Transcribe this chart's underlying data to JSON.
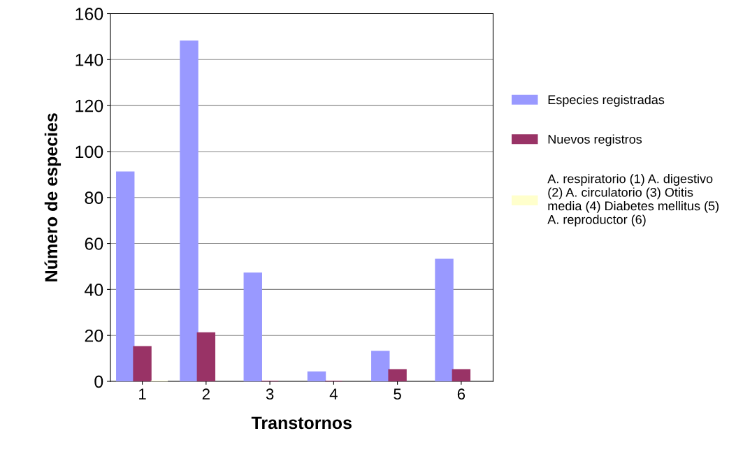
{
  "chart_data": {
    "type": "bar",
    "xlabel": "Transtornos",
    "ylabel": "Número de especies",
    "categories": [
      "1",
      "2",
      "3",
      "4",
      "5",
      "6"
    ],
    "series": [
      {
        "name": "Especies registradas",
        "color": "#9999ff",
        "values": [
          91,
          148,
          47,
          4,
          13,
          53
        ]
      },
      {
        "name": "Nuevos registros",
        "color": "#993366",
        "values": [
          15,
          21,
          0,
          0,
          5,
          5
        ]
      },
      {
        "name": "A. respiratorio (1) A. digestivo\n(2) A. circulatorio (3) Otitis\nmedia (4) Diabetes mellitus (5)\nA. reproductor (6)",
        "color": "#ffffcc",
        "values": [
          0,
          null,
          null,
          null,
          null,
          null
        ]
      }
    ],
    "ylim": [
      0,
      160
    ],
    "yticks": [
      0,
      20,
      40,
      60,
      80,
      100,
      120,
      140,
      160
    ],
    "grid": "y",
    "legend": "right"
  }
}
